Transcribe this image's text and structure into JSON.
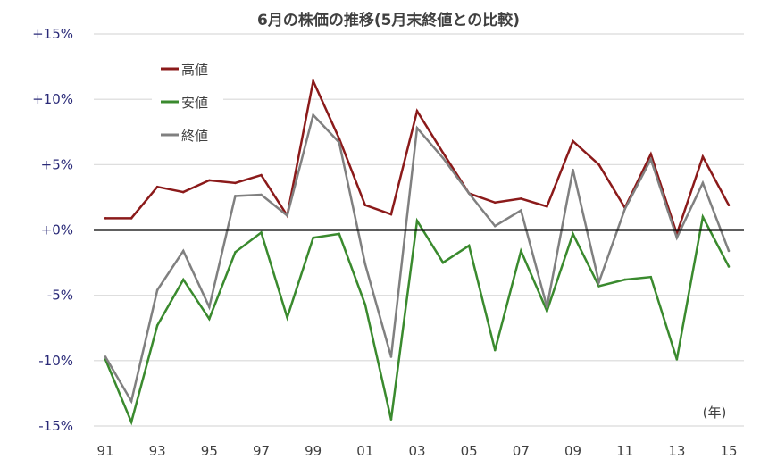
{
  "chart_data": {
    "type": "line",
    "title": "6月の株価の推移(5月末終値との比較)",
    "xlabel": "(年)",
    "ylabel": "",
    "ylim": [
      -15,
      15
    ],
    "yticks": [
      15,
      10,
      5,
      0,
      -5,
      -10,
      -15
    ],
    "ytick_labels": [
      "+15%",
      "+10%",
      "+5%",
      "+0%",
      "-5%",
      "-10%",
      "-15%"
    ],
    "x": [
      "91",
      "92",
      "93",
      "94",
      "95",
      "96",
      "97",
      "98",
      "99",
      "00",
      "01",
      "02",
      "03",
      "04",
      "05",
      "06",
      "07",
      "08",
      "09",
      "10",
      "11",
      "12",
      "13",
      "14",
      "15"
    ],
    "xtick_labels": [
      "91",
      "93",
      "95",
      "97",
      "99",
      "01",
      "03",
      "05",
      "07",
      "09",
      "11",
      "13",
      "15"
    ],
    "legend_position": "top-left",
    "grid": true,
    "series": [
      {
        "name": "高値",
        "color": "#8b1a1a",
        "values": [
          0.9,
          0.9,
          3.3,
          2.9,
          3.8,
          3.6,
          4.2,
          1.1,
          11.4,
          7.0,
          1.9,
          1.2,
          9.1,
          5.9,
          2.8,
          2.1,
          2.4,
          1.8,
          6.8,
          5.0,
          1.7,
          5.8,
          -0.3,
          5.6,
          1.9
        ]
      },
      {
        "name": "安値",
        "color": "#3a8a2e",
        "values": [
          -9.9,
          -14.7,
          -7.3,
          -3.8,
          -6.8,
          -1.7,
          -0.2,
          -6.7,
          -0.6,
          -0.3,
          -5.7,
          -14.5,
          0.7,
          -2.5,
          -1.2,
          -9.2,
          -1.6,
          -6.2,
          -0.3,
          -4.3,
          -3.8,
          -3.6,
          -9.9,
          1.0,
          -2.8
        ]
      },
      {
        "name": "終値",
        "color": "#808080",
        "values": [
          -9.7,
          -13.1,
          -4.6,
          -1.6,
          -5.9,
          2.6,
          2.7,
          1.1,
          8.8,
          6.7,
          -2.6,
          -9.7,
          7.8,
          5.5,
          2.8,
          0.3,
          1.5,
          -5.9,
          4.6,
          -4.0,
          1.6,
          5.4,
          -0.6,
          3.6,
          -1.6
        ]
      }
    ]
  }
}
